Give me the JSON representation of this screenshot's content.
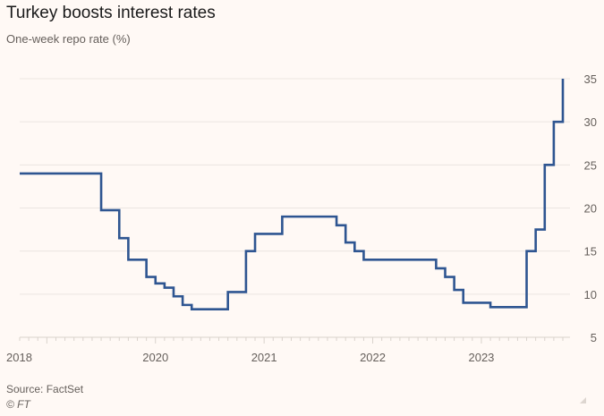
{
  "header": {
    "title": "Turkey boosts interest rates",
    "subtitle": "One-week repo rate (%)"
  },
  "footer": {
    "source": "Source: FactSet",
    "copyright": "© FT"
  },
  "chart_data": {
    "type": "line",
    "step": true,
    "title": "Turkey boosts interest rates",
    "subtitle": "One-week repo rate (%)",
    "xlabel": "",
    "ylabel": "",
    "ylim": [
      5,
      35
    ],
    "yticks": [
      5,
      10,
      15,
      20,
      25,
      30,
      35
    ],
    "y_axis_side": "right",
    "grid": true,
    "xlim": [
      "2018-10",
      "2023-10"
    ],
    "xtick_labels": [
      {
        "label": "2018",
        "date": "2018-10"
      },
      {
        "label": "2020",
        "date": "2020-01"
      },
      {
        "label": "2021",
        "date": "2021-01"
      },
      {
        "label": "2022",
        "date": "2022-01"
      },
      {
        "label": "2023",
        "date": "2023-01"
      }
    ],
    "series": [
      {
        "name": "One-week repo rate (%)",
        "color": "#2e5591",
        "points": [
          {
            "date": "2018-10",
            "value": 24
          },
          {
            "date": "2019-07",
            "value": 19.75
          },
          {
            "date": "2019-09",
            "value": 16.5
          },
          {
            "date": "2019-10",
            "value": 14
          },
          {
            "date": "2019-12",
            "value": 12
          },
          {
            "date": "2020-01",
            "value": 11.25
          },
          {
            "date": "2020-02",
            "value": 10.75
          },
          {
            "date": "2020-03",
            "value": 9.75
          },
          {
            "date": "2020-04",
            "value": 8.75
          },
          {
            "date": "2020-05",
            "value": 8.25
          },
          {
            "date": "2020-09",
            "value": 10.25
          },
          {
            "date": "2020-11",
            "value": 15
          },
          {
            "date": "2020-12",
            "value": 17
          },
          {
            "date": "2021-03",
            "value": 19
          },
          {
            "date": "2021-09",
            "value": 18
          },
          {
            "date": "2021-10",
            "value": 16
          },
          {
            "date": "2021-11",
            "value": 15
          },
          {
            "date": "2021-12",
            "value": 14
          },
          {
            "date": "2022-08",
            "value": 13
          },
          {
            "date": "2022-09",
            "value": 12
          },
          {
            "date": "2022-10",
            "value": 10.5
          },
          {
            "date": "2022-11",
            "value": 9
          },
          {
            "date": "2023-02",
            "value": 8.5
          },
          {
            "date": "2023-06",
            "value": 15
          },
          {
            "date": "2023-07",
            "value": 17.5
          },
          {
            "date": "2023-08",
            "value": 25
          },
          {
            "date": "2023-09",
            "value": 30
          },
          {
            "date": "2023-10",
            "value": 35
          }
        ]
      }
    ]
  }
}
